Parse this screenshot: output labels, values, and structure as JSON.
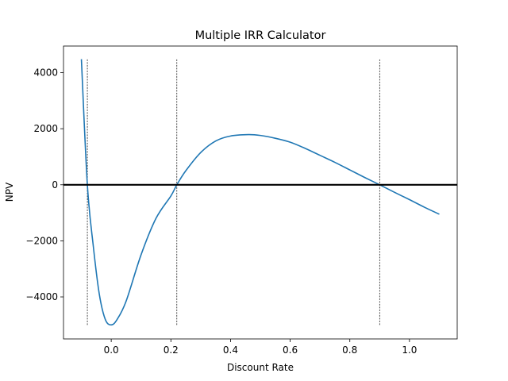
{
  "chart_data": {
    "type": "line",
    "title": "Multiple IRR Calculator",
    "xlabel": "Discount Rate",
    "ylabel": "NPV",
    "xlim": [
      -0.16,
      1.16
    ],
    "ylim": [
      -5500,
      4950
    ],
    "xticks": [
      0.0,
      0.2,
      0.4,
      0.6,
      0.8,
      1.0
    ],
    "xtick_labels": [
      "0.0",
      "0.2",
      "0.4",
      "0.6",
      "0.8",
      "1.0"
    ],
    "yticks": [
      -4000,
      -2000,
      0,
      2000,
      4000
    ],
    "ytick_labels": [
      "−4000",
      "−2000",
      "0",
      "2000",
      "4000"
    ],
    "grid": false,
    "series": [
      {
        "color": "#1f77b4",
        "x": [
          -0.1,
          -0.08,
          -0.06,
          -0.04,
          -0.02,
          0.0,
          0.02,
          0.05,
          0.1,
          0.15,
          0.2,
          0.22,
          0.25,
          0.3,
          0.35,
          0.4,
          0.46,
          0.5,
          0.55,
          0.6,
          0.65,
          0.7,
          0.75,
          0.8,
          0.85,
          0.9,
          0.95,
          1.0,
          1.05,
          1.1
        ],
        "y": [
          4480,
          0,
          -2200,
          -3900,
          -4800,
          -5000,
          -4800,
          -4150,
          -2500,
          -1200,
          -400,
          0,
          500,
          1150,
          1560,
          1740,
          1790,
          1760,
          1660,
          1520,
          1300,
          1050,
          800,
          530,
          260,
          0,
          -270,
          -530,
          -800,
          -1050
        ]
      }
    ],
    "zero_line": {
      "y": 0,
      "color": "#000000"
    },
    "irr_markers": {
      "x": [
        -0.08,
        0.22,
        0.9
      ],
      "y_range": [
        -5000,
        4500
      ],
      "color": "#000000",
      "style": "dashed"
    }
  }
}
